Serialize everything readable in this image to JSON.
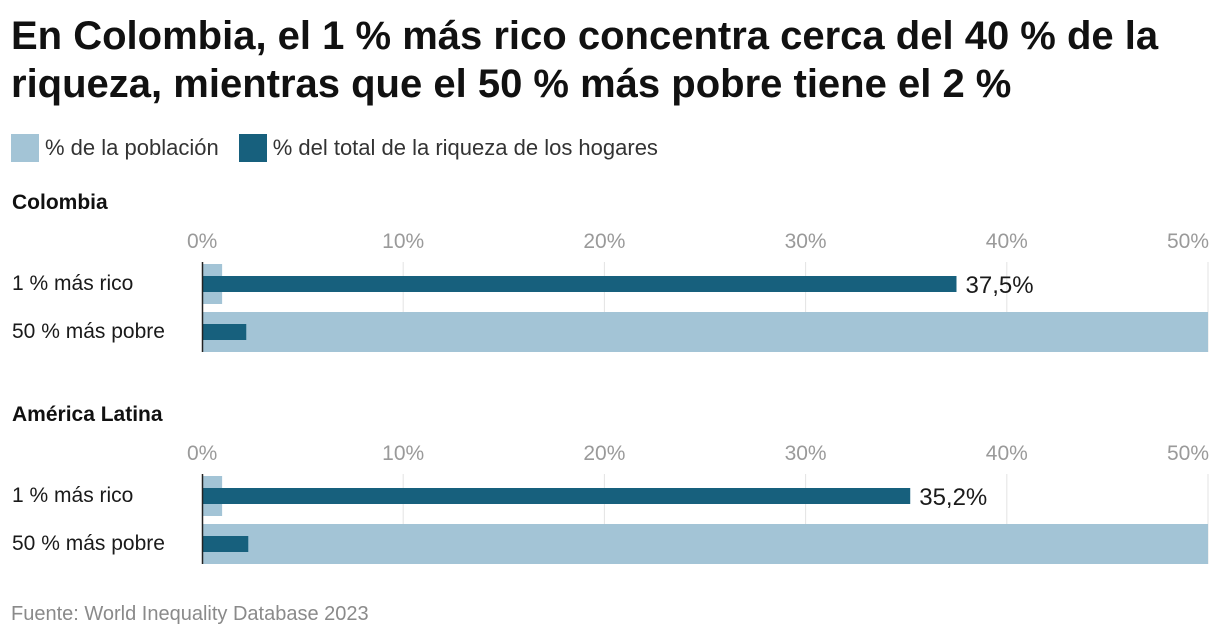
{
  "title": "En Colombia, el 1 % más rico concentra cerca del 40 % de la riqueza, mientras que el 50 % más pobre tiene el 2 %",
  "legend": [
    {
      "label": "% de la población",
      "color": "#a3c4d6"
    },
    {
      "label": "% del total de la riqueza de los hogares",
      "color": "#17607d"
    }
  ],
  "source": "Fuente: World Inequality Database 2023",
  "chart_data": [
    {
      "type": "bar",
      "orientation": "horizontal",
      "title": "Colombia",
      "categories": [
        "1 % más rico",
        "50 % más pobre"
      ],
      "series": [
        {
          "name": "% de la población",
          "values": [
            1,
            50
          ]
        },
        {
          "name": "% del total de la riqueza de los hogares",
          "values": [
            37.5,
            2.2
          ]
        }
      ],
      "data_labels": [
        "37,5%",
        ""
      ],
      "xlim": [
        0,
        50
      ],
      "ticks": [
        0,
        10,
        20,
        30,
        40,
        50
      ],
      "tick_labels": [
        "0%",
        "10%",
        "20%",
        "30%",
        "40%",
        "50%"
      ]
    },
    {
      "type": "bar",
      "orientation": "horizontal",
      "title": "América Latina",
      "categories": [
        "1 % más rico",
        "50 % más pobre"
      ],
      "series": [
        {
          "name": "% de la población",
          "values": [
            1,
            50
          ]
        },
        {
          "name": "% del total de la riqueza de los hogares",
          "values": [
            35.2,
            2.3
          ]
        }
      ],
      "data_labels": [
        "35,2%",
        ""
      ],
      "xlim": [
        0,
        50
      ],
      "ticks": [
        0,
        10,
        20,
        30,
        40,
        50
      ],
      "tick_labels": [
        "0%",
        "10%",
        "20%",
        "30%",
        "40%",
        "50%"
      ]
    }
  ]
}
